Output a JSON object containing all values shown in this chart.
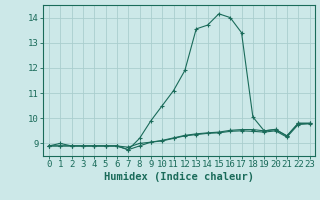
{
  "xlabel": "Humidex (Indice chaleur)",
  "ylabel": "",
  "x_ticks": [
    0,
    1,
    2,
    3,
    4,
    5,
    6,
    7,
    8,
    9,
    10,
    11,
    12,
    13,
    14,
    15,
    16,
    17,
    18,
    19,
    20,
    21,
    22,
    23
  ],
  "ylim": [
    8.5,
    14.5
  ],
  "xlim": [
    -0.5,
    23.5
  ],
  "bg_color": "#cce8e8",
  "grid_color": "#aacece",
  "line_color": "#1a6b5a",
  "series1_x": [
    0,
    1,
    2,
    3,
    4,
    5,
    6,
    7,
    8,
    9,
    10,
    11,
    12,
    13,
    14,
    15,
    16,
    17,
    18,
    19,
    20,
    21,
    22,
    23
  ],
  "series1_y": [
    8.9,
    9.0,
    8.9,
    8.9,
    8.9,
    8.9,
    8.9,
    8.75,
    9.2,
    9.9,
    10.5,
    11.1,
    11.9,
    13.55,
    13.7,
    14.15,
    14.0,
    13.4,
    10.05,
    9.5,
    9.55,
    9.3,
    9.8,
    9.8
  ],
  "series2_x": [
    0,
    1,
    2,
    3,
    4,
    5,
    6,
    7,
    8,
    9,
    10,
    11,
    12,
    13,
    14,
    15,
    16,
    17,
    18,
    19,
    20,
    21,
    22,
    23
  ],
  "series2_y": [
    8.9,
    8.9,
    8.9,
    8.9,
    8.9,
    8.9,
    8.9,
    8.75,
    8.9,
    9.05,
    9.1,
    9.2,
    9.3,
    9.35,
    9.4,
    9.42,
    9.48,
    9.5,
    9.48,
    9.45,
    9.5,
    9.25,
    9.75,
    9.78
  ],
  "series3_x": [
    0,
    1,
    2,
    3,
    4,
    5,
    6,
    7,
    8,
    9,
    10,
    11,
    12,
    13,
    14,
    15,
    16,
    17,
    18,
    19,
    20,
    21,
    22,
    23
  ],
  "series3_y": [
    8.9,
    8.9,
    8.9,
    8.9,
    8.9,
    8.9,
    8.9,
    8.85,
    9.0,
    9.05,
    9.12,
    9.22,
    9.32,
    9.38,
    9.42,
    9.45,
    9.52,
    9.55,
    9.55,
    9.5,
    9.56,
    9.3,
    9.8,
    9.8
  ],
  "yticks": [
    9,
    10,
    11,
    12,
    13,
    14
  ],
  "tick_fontsize": 6.5,
  "xlabel_fontsize": 7.5
}
